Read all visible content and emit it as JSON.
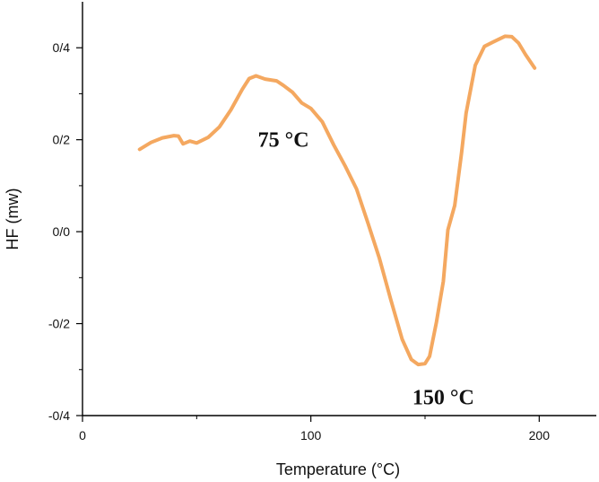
{
  "chart_data": {
    "type": "line",
    "xlabel": "Temperature (°C)",
    "ylabel": "HF (mw)",
    "xlim": [
      0,
      225
    ],
    "ylim": [
      -0.4,
      0.5
    ],
    "x_ticks": [
      0,
      100,
      200
    ],
    "x_tick_labels": [
      "0",
      "100",
      "200"
    ],
    "y_ticks": [
      -0.4,
      -0.2,
      0.0,
      0.2,
      0.4
    ],
    "y_tick_labels": [
      "-0/4",
      "-0/2",
      "0/0",
      "0/2",
      "0/4"
    ],
    "grid": false,
    "series": [
      {
        "color": "#F4A860",
        "x": [
          25,
          30,
          35,
          40,
          42,
          44,
          47,
          50,
          55,
          60,
          65,
          70,
          73,
          76,
          80,
          85,
          88,
          92,
          96,
          100,
          105,
          110,
          115,
          120,
          125,
          130,
          135,
          140,
          144,
          147,
          150,
          152,
          155,
          158,
          160,
          163,
          166,
          168,
          172,
          176,
          180,
          185,
          188,
          191,
          194,
          198
        ],
        "y": [
          0.179,
          0.194,
          0.204,
          0.209,
          0.208,
          0.191,
          0.197,
          0.193,
          0.205,
          0.228,
          0.265,
          0.31,
          0.333,
          0.339,
          0.332,
          0.328,
          0.318,
          0.303,
          0.28,
          0.268,
          0.239,
          0.189,
          0.143,
          0.093,
          0.019,
          -0.058,
          -0.148,
          -0.234,
          -0.278,
          -0.289,
          -0.287,
          -0.271,
          -0.197,
          -0.108,
          0.004,
          0.057,
          0.171,
          0.258,
          0.362,
          0.403,
          0.413,
          0.425,
          0.424,
          0.41,
          0.385,
          0.356
        ]
      }
    ],
    "annotations": [
      {
        "text": "75 °C",
        "x": 88,
        "y": 0.2
      },
      {
        "text": "150 °C",
        "x": 158,
        "y": -0.36
      }
    ]
  }
}
